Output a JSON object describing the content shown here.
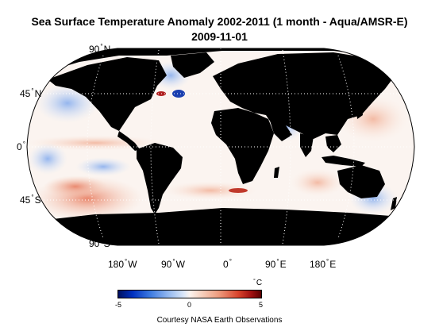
{
  "title": {
    "line1": "Sea Surface Temperature Anomaly 2002-2011 (1 month - Aqua/AMSR-E)",
    "line2": "2009-11-01"
  },
  "latitude_labels": [
    {
      "value": "90",
      "hemi": "N"
    },
    {
      "value": "45",
      "hemi": "N"
    },
    {
      "value": "0",
      "hemi": ""
    },
    {
      "value": "45",
      "hemi": "S"
    },
    {
      "value": "90",
      "hemi": "S"
    }
  ],
  "longitude_labels": [
    {
      "value": "180",
      "hemi": "W"
    },
    {
      "value": "90",
      "hemi": "W"
    },
    {
      "value": "0",
      "hemi": ""
    },
    {
      "value": "90",
      "hemi": "E"
    },
    {
      "value": "180",
      "hemi": "E"
    }
  ],
  "colorbar": {
    "unit": "C",
    "min_label": "-5",
    "mid_label": "0",
    "max_label": "5",
    "range": [
      -5,
      5
    ],
    "colors": [
      "#001060",
      "#3a78e0",
      "#fbf3ee",
      "#d8442c",
      "#5a0000"
    ]
  },
  "credit": "Courtesy NASA Earth Observations",
  "colors": {
    "land": "#000000",
    "ocean_warm": "#ee9d80",
    "ocean_cool": "#93b8f0",
    "ocean_neutral": "#fbf3ee"
  }
}
